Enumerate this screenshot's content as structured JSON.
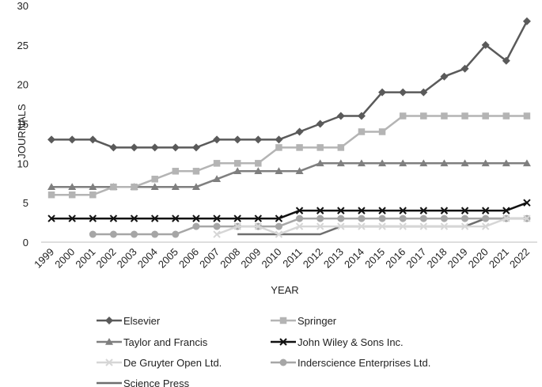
{
  "chart_data": {
    "type": "line",
    "xlabel": "YEAR",
    "ylabel": "JOURNALS",
    "ylim": [
      0,
      30
    ],
    "yticks": [
      0,
      5,
      10,
      15,
      20,
      25,
      30
    ],
    "grid": false,
    "legend_position": "bottom",
    "x": [
      "1999",
      "2000",
      "2001",
      "2002",
      "2003",
      "2004",
      "2005",
      "2006",
      "2007",
      "2008",
      "2009",
      "2010",
      "2011",
      "2012",
      "2013",
      "2014",
      "2015",
      "2016",
      "2017",
      "2018",
      "2019",
      "2020",
      "2021",
      "2022"
    ],
    "series": [
      {
        "name": "Elsevier",
        "color": "#5a5a5a",
        "marker": "diamond",
        "values": [
          13,
          13,
          13,
          12,
          12,
          12,
          12,
          12,
          13,
          13,
          13,
          13,
          14,
          15,
          16,
          16,
          19,
          19,
          19,
          21,
          22,
          25,
          23,
          28
        ]
      },
      {
        "name": "Springer",
        "color": "#b4b4b4",
        "marker": "square",
        "values": [
          6,
          6,
          6,
          7,
          7,
          8,
          9,
          9,
          10,
          10,
          10,
          12,
          12,
          12,
          12,
          14,
          14,
          16,
          16,
          16,
          16,
          16,
          16,
          16
        ]
      },
      {
        "name": "Taylor and Francis",
        "color": "#7f7f7f",
        "marker": "triangle",
        "values": [
          7,
          7,
          7,
          7,
          7,
          7,
          7,
          7,
          8,
          9,
          9,
          9,
          9,
          10,
          10,
          10,
          10,
          10,
          10,
          10,
          10,
          10,
          10,
          10
        ]
      },
      {
        "name": "John Wiley & Sons Inc.",
        "color": "#111111",
        "marker": "x",
        "values": [
          3,
          3,
          3,
          3,
          3,
          3,
          3,
          3,
          3,
          3,
          3,
          3,
          4,
          4,
          4,
          4,
          4,
          4,
          4,
          4,
          4,
          4,
          4,
          5
        ]
      },
      {
        "name": "De Gruyter Open Ltd.",
        "color": "#d6d6d6",
        "marker": "x",
        "values": [
          null,
          null,
          null,
          null,
          null,
          null,
          null,
          null,
          1,
          2,
          2,
          1,
          2,
          2,
          2,
          2,
          2,
          2,
          2,
          2,
          2,
          2,
          3,
          3
        ]
      },
      {
        "name": "Inderscience Enterprises Ltd.",
        "color": "#a6a6a6",
        "marker": "circle",
        "values": [
          null,
          null,
          1,
          1,
          1,
          1,
          1,
          2,
          2,
          2,
          2,
          2,
          3,
          3,
          3,
          3,
          3,
          3,
          3,
          3,
          3,
          3,
          3,
          3
        ]
      },
      {
        "name": "Science Press",
        "color": "#6e6e6e",
        "marker": "none",
        "values": [
          null,
          null,
          null,
          null,
          null,
          null,
          null,
          null,
          null,
          1,
          1,
          1,
          1,
          1,
          2,
          2,
          2,
          2,
          2,
          2,
          2,
          3,
          3,
          3
        ]
      }
    ]
  }
}
